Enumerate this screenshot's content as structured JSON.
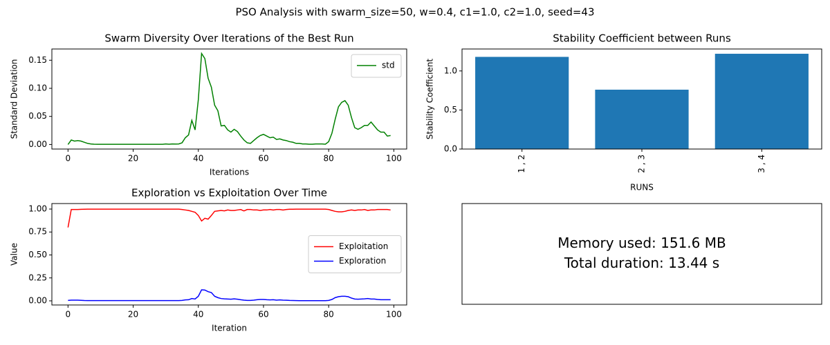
{
  "title": "PSO Analysis with swarm_size=50, w=0.4, c1=1.0, c2=1.0, seed=43",
  "chart_data": [
    {
      "type": "line",
      "title": "Swarm Diversity Over Iterations of the Best Run",
      "xlabel": "Iterations",
      "ylabel": "Standard Deviation",
      "x": [
        0,
        1,
        2,
        3,
        4,
        5,
        6,
        7,
        8,
        9,
        10,
        11,
        12,
        13,
        14,
        15,
        16,
        17,
        18,
        19,
        20,
        21,
        22,
        23,
        24,
        25,
        26,
        27,
        28,
        29,
        30,
        31,
        32,
        33,
        34,
        35,
        36,
        37,
        38,
        39,
        40,
        41,
        42,
        43,
        44,
        45,
        46,
        47,
        48,
        49,
        50,
        51,
        52,
        53,
        54,
        55,
        56,
        57,
        58,
        59,
        60,
        61,
        62,
        63,
        64,
        65,
        66,
        67,
        68,
        69,
        70,
        71,
        72,
        73,
        74,
        75,
        76,
        77,
        78,
        79,
        80,
        81,
        82,
        83,
        84,
        85,
        86,
        87,
        88,
        89,
        90,
        91,
        92,
        93,
        94,
        95,
        96,
        97,
        98,
        99
      ],
      "series": [
        {
          "name": "std",
          "color": "#008000",
          "values": [
            0,
            0.008,
            0.006,
            0.007,
            0.006,
            0.004,
            0.002,
            0.001,
            0.0005,
            0.0003,
            0.0003,
            0.0003,
            0.0003,
            0.0003,
            0.0003,
            0.0003,
            0.0003,
            0.0003,
            0.0003,
            0.0003,
            0.0003,
            0.0003,
            0.0003,
            0.0003,
            0.0003,
            0.0003,
            0.0003,
            0.0003,
            0.0003,
            0.0003,
            0.001,
            0.0005,
            0.001,
            0.0008,
            0.001,
            0.003,
            0.012,
            0.017,
            0.043,
            0.026,
            0.08,
            0.162,
            0.153,
            0.118,
            0.102,
            0.07,
            0.06,
            0.033,
            0.034,
            0.026,
            0.022,
            0.027,
            0.023,
            0.015,
            0.008,
            0.003,
            0.002,
            0.007,
            0.012,
            0.016,
            0.018,
            0.015,
            0.012,
            0.013,
            0.009,
            0.01,
            0.008,
            0.007,
            0.005,
            0.004,
            0.002,
            0.002,
            0.001,
            0.001,
            0.0005,
            0.0005,
            0.001,
            0.001,
            0.001,
            0.0005,
            0.005,
            0.02,
            0.045,
            0.067,
            0.075,
            0.078,
            0.07,
            0.048,
            0.03,
            0.027,
            0.03,
            0.034,
            0.034,
            0.04,
            0.033,
            0.026,
            0.022,
            0.022,
            0.015,
            0.016
          ]
        }
      ],
      "xlim": [
        -4.95,
        103.95
      ],
      "xticks": [
        0,
        20,
        40,
        60,
        80,
        100
      ],
      "ylim": [
        -0.0081,
        0.17
      ],
      "yticks": [
        {
          "value": 0,
          "label": "0.00"
        },
        {
          "value": 0.05,
          "label": "0.05"
        },
        {
          "value": 0.1,
          "label": "0.10"
        },
        {
          "value": 0.15,
          "label": "0.15"
        }
      ],
      "legend": "upper right"
    },
    {
      "type": "bar",
      "title": "Stability Coefficient between Runs",
      "xlabel": "RUNS",
      "ylabel": "Stability Coefficient",
      "categories": [
        "1 , 2",
        "2 , 3",
        "3 , 4"
      ],
      "values": [
        1.18,
        0.76,
        1.22
      ],
      "color": "#1f77b4",
      "ylim": [
        0,
        1.281
      ],
      "yticks": [
        {
          "value": 0,
          "label": "0.0"
        },
        {
          "value": 0.5,
          "label": "0.5"
        },
        {
          "value": 1,
          "label": "1.0"
        }
      ]
    },
    {
      "type": "line",
      "title": "Exploration vs Exploitation Over Time",
      "xlabel": "Iteration",
      "ylabel": "Value",
      "x": [
        0,
        1,
        2,
        3,
        4,
        5,
        6,
        7,
        8,
        9,
        10,
        11,
        12,
        13,
        14,
        15,
        16,
        17,
        18,
        19,
        20,
        21,
        22,
        23,
        24,
        25,
        26,
        27,
        28,
        29,
        30,
        31,
        32,
        33,
        34,
        35,
        36,
        37,
        38,
        39,
        40,
        41,
        42,
        43,
        44,
        45,
        46,
        47,
        48,
        49,
        50,
        51,
        52,
        53,
        54,
        55,
        56,
        57,
        58,
        59,
        60,
        61,
        62,
        63,
        64,
        65,
        66,
        67,
        68,
        69,
        70,
        71,
        72,
        73,
        74,
        75,
        76,
        77,
        78,
        79,
        80,
        81,
        82,
        83,
        84,
        85,
        86,
        87,
        88,
        89,
        90,
        91,
        92,
        93,
        94,
        95,
        96,
        97,
        98,
        99
      ],
      "series": [
        {
          "name": "Exploitation",
          "color": "#ff0000",
          "values": [
            0.8,
            0.995,
            0.995,
            0.995,
            0.997,
            0.998,
            0.999,
            0.999,
            0.999,
            0.999,
            0.999,
            0.999,
            0.999,
            0.999,
            0.999,
            0.999,
            0.999,
            0.999,
            0.999,
            0.999,
            0.999,
            0.999,
            0.999,
            0.999,
            0.999,
            0.999,
            0.999,
            0.999,
            0.999,
            0.999,
            0.999,
            0.999,
            0.999,
            0.999,
            0.999,
            0.995,
            0.99,
            0.985,
            0.975,
            0.965,
            0.93,
            0.87,
            0.9,
            0.89,
            0.93,
            0.975,
            0.98,
            0.985,
            0.98,
            0.99,
            0.985,
            0.985,
            0.99,
            0.995,
            0.98,
            0.995,
            0.995,
            0.99,
            0.99,
            0.985,
            0.99,
            0.99,
            0.995,
            0.99,
            0.995,
            0.995,
            0.99,
            0.995,
            0.998,
            0.998,
            0.999,
            0.999,
            0.999,
            0.999,
            0.999,
            0.999,
            0.999,
            0.999,
            0.999,
            0.999,
            0.995,
            0.985,
            0.975,
            0.97,
            0.97,
            0.975,
            0.985,
            0.99,
            0.985,
            0.99,
            0.99,
            0.995,
            0.985,
            0.99,
            0.99,
            0.995,
            0.995,
            0.995,
            0.995,
            0.99
          ]
        },
        {
          "name": "Exploration",
          "color": "#0000ff",
          "values": [
            0.005,
            0.008,
            0.008,
            0.008,
            0.006,
            0.004,
            0.003,
            0.003,
            0.003,
            0.003,
            0.003,
            0.003,
            0.003,
            0.003,
            0.003,
            0.003,
            0.003,
            0.003,
            0.003,
            0.003,
            0.003,
            0.003,
            0.003,
            0.003,
            0.003,
            0.003,
            0.003,
            0.003,
            0.003,
            0.003,
            0.003,
            0.003,
            0.003,
            0.003,
            0.003,
            0.005,
            0.01,
            0.012,
            0.025,
            0.02,
            0.05,
            0.12,
            0.118,
            0.1,
            0.09,
            0.05,
            0.035,
            0.025,
            0.022,
            0.02,
            0.018,
            0.022,
            0.018,
            0.012,
            0.008,
            0.005,
            0.005,
            0.008,
            0.012,
            0.015,
            0.015,
            0.012,
            0.01,
            0.012,
            0.008,
            0.01,
            0.008,
            0.007,
            0.005,
            0.004,
            0.003,
            0.002,
            0.002,
            0.002,
            0.002,
            0.002,
            0.002,
            0.002,
            0.002,
            0.002,
            0.005,
            0.015,
            0.035,
            0.045,
            0.05,
            0.05,
            0.045,
            0.03,
            0.02,
            0.018,
            0.02,
            0.022,
            0.025,
            0.02,
            0.02,
            0.015,
            0.012,
            0.012,
            0.012,
            0.012
          ]
        }
      ],
      "xlim": [
        -4.95,
        103.95
      ],
      "xticks": [
        0,
        20,
        40,
        60,
        80,
        100
      ],
      "ylim": [
        -0.045,
        1.06
      ],
      "yticks": [
        {
          "value": 0,
          "label": "0.00"
        },
        {
          "value": 0.25,
          "label": "0.25"
        },
        {
          "value": 0.5,
          "label": "0.50"
        },
        {
          "value": 0.75,
          "label": "0.75"
        },
        {
          "value": 1,
          "label": "1.00"
        }
      ],
      "legend": "center right"
    },
    {
      "type": "text",
      "lines": [
        "Memory used: 151.6 MB",
        "Total duration: 13.44 s"
      ]
    }
  ]
}
